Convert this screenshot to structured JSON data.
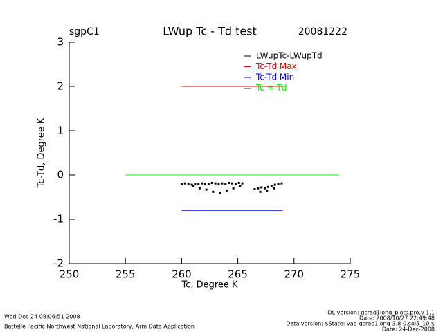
{
  "chart_data": {
    "type": "scatter",
    "station": "sgpC1",
    "title": "LWup Tc - Td test",
    "date": "20081222",
    "x_label": "Tc, Degree K",
    "y_label": "Tc-Td, Degree K",
    "xlim": [
      250,
      275
    ],
    "xticks": [
      250,
      255,
      260,
      265,
      270,
      275
    ],
    "ylim": [
      -2,
      3
    ],
    "yticks": [
      -2,
      -1,
      0,
      1,
      2,
      3
    ],
    "legend": "top-right",
    "series": [
      {
        "name": "LWupTc-LWupTd",
        "color": "#000000",
        "mode": "points",
        "x": [
          260.0,
          260.3,
          260.6,
          260.9,
          261.2,
          261.5,
          261.8,
          262.1,
          262.4,
          262.7,
          263.0,
          263.3,
          263.6,
          263.9,
          264.2,
          264.5,
          264.8,
          265.1,
          265.4,
          261.0,
          261.6,
          262.2,
          262.8,
          263.4,
          264.0,
          264.6,
          265.2,
          266.5,
          266.8,
          267.1,
          267.4,
          267.7,
          268.0,
          268.3,
          268.6,
          268.9,
          267.0,
          267.6,
          268.2
        ],
        "values": [
          -0.2,
          -0.19,
          -0.2,
          -0.22,
          -0.2,
          -0.21,
          -0.19,
          -0.2,
          -0.2,
          -0.18,
          -0.19,
          -0.2,
          -0.19,
          -0.2,
          -0.18,
          -0.19,
          -0.2,
          -0.18,
          -0.19,
          -0.25,
          -0.3,
          -0.33,
          -0.38,
          -0.4,
          -0.35,
          -0.3,
          -0.25,
          -0.32,
          -0.3,
          -0.28,
          -0.3,
          -0.27,
          -0.25,
          -0.22,
          -0.2,
          -0.19,
          -0.38,
          -0.35,
          -0.3
        ]
      },
      {
        "name": "Tc-Td Max",
        "color": "#ff0000",
        "mode": "line",
        "x": [
          260,
          269
        ],
        "values": [
          2,
          2
        ]
      },
      {
        "name": "Tc-Td Min",
        "color": "#0000ff",
        "mode": "line",
        "x": [
          260,
          269
        ],
        "values": [
          -0.8,
          -0.8
        ]
      },
      {
        "name": "Tc = Td",
        "color": "#00ff00",
        "mode": "line",
        "x": [
          255,
          274
        ],
        "values": [
          0,
          0
        ]
      }
    ]
  },
  "footer": {
    "run_time": "Wed Dec 24 08:06:51 2008",
    "organization": "Battelle Pacific Northwest National Laboratory, Arm Data Application",
    "idl_version": "IDL version: qcrad1long_plots.pro,v 1.1",
    "idl_date": "Date: 2008/10/27 22:49:48",
    "data_version": "Data version: $State: vap-qcrad1long-3.8-0.sol5_10 $",
    "data_date": "Date: 24-Dec-2008"
  }
}
